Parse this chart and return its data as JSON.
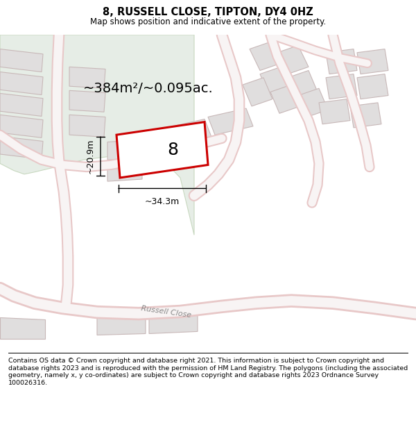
{
  "title": "8, RUSSELL CLOSE, TIPTON, DY4 0HZ",
  "subtitle": "Map shows position and indicative extent of the property.",
  "footer": "Contains OS data © Crown copyright and database right 2021. This information is subject to Crown copyright and database rights 2023 and is reproduced with the permission of HM Land Registry. The polygons (including the associated geometry, namely x, y co-ordinates) are subject to Crown copyright and database rights 2023 Ordnance Survey 100026316.",
  "area_label": "~384m²/~0.095ac.",
  "width_label": "~34.3m",
  "height_label": "~20.9m",
  "plot_number": "8",
  "bg_map_color": "#f0eeee",
  "green_area_color": "#e6ede6",
  "plot_outline_color": "#cc0000",
  "road_fill_color": "#f8f4f4",
  "road_edge_color": "#e8c8c8",
  "block_color": "#e0dede",
  "block_outline_color": "#c8b8b8",
  "road_label": "Russell Close",
  "figsize": [
    6.0,
    6.25
  ],
  "dpi": 100
}
